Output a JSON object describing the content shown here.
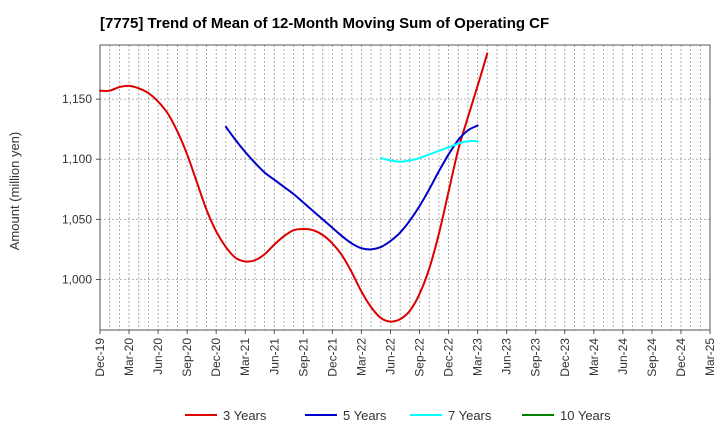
{
  "chart_data": {
    "type": "line",
    "title": "[7775]  Trend of Mean of 12-Month Moving Sum of Operating CF",
    "xlabel": "",
    "ylabel": "Amount (million yen)",
    "ylim": [
      958,
      1195
    ],
    "y_ticks": [
      1000,
      1050,
      1100,
      1150
    ],
    "y_tick_labels": [
      "1,000",
      "1,050",
      "1,100",
      "1,150"
    ],
    "x_tick_labels": [
      "Dec-19",
      "Mar-20",
      "Jun-20",
      "Sep-20",
      "Dec-20",
      "Mar-21",
      "Jun-21",
      "Sep-21",
      "Dec-21",
      "Mar-22",
      "Jun-22",
      "Sep-22",
      "Dec-22",
      "Mar-23",
      "Jun-23",
      "Sep-23",
      "Dec-23",
      "Mar-24",
      "Jun-24",
      "Sep-24",
      "Dec-24",
      "Mar-25"
    ],
    "grid": true,
    "legend_position": "bottom",
    "series": [
      {
        "name": "3 Years",
        "color": "#dd0000",
        "points": [
          [
            0,
            1157
          ],
          [
            1,
            1157
          ],
          [
            2,
            1160
          ],
          [
            3,
            1161
          ],
          [
            4,
            1159
          ],
          [
            5,
            1155
          ],
          [
            6,
            1148
          ],
          [
            7,
            1138
          ],
          [
            8,
            1123
          ],
          [
            9,
            1104
          ],
          [
            10,
            1081
          ],
          [
            11,
            1058
          ],
          [
            12,
            1040
          ],
          [
            13,
            1027
          ],
          [
            14,
            1018
          ],
          [
            15,
            1015
          ],
          [
            16,
            1016
          ],
          [
            17,
            1021
          ],
          [
            18,
            1029
          ],
          [
            19,
            1036
          ],
          [
            20,
            1041
          ],
          [
            21,
            1042
          ],
          [
            22,
            1041
          ],
          [
            23,
            1037
          ],
          [
            24,
            1030
          ],
          [
            25,
            1020
          ],
          [
            26,
            1006
          ],
          [
            27,
            990
          ],
          [
            28,
            977
          ],
          [
            29,
            968
          ],
          [
            30,
            965
          ],
          [
            31,
            967
          ],
          [
            32,
            974
          ],
          [
            33,
            988
          ],
          [
            34,
            1009
          ],
          [
            35,
            1038
          ],
          [
            36,
            1073
          ],
          [
            37,
            1108
          ],
          [
            38,
            1135
          ],
          [
            39,
            1161
          ],
          [
            40,
            1188
          ]
        ]
      },
      {
        "name": "5 Years",
        "color": "#0000cc",
        "points": [
          [
            13,
            1127
          ],
          [
            14,
            1116
          ],
          [
            15,
            1106
          ],
          [
            16,
            1097
          ],
          [
            17,
            1089
          ],
          [
            18,
            1083
          ],
          [
            19,
            1077
          ],
          [
            20,
            1071
          ],
          [
            21,
            1064
          ],
          [
            22,
            1057
          ],
          [
            23,
            1050
          ],
          [
            24,
            1043
          ],
          [
            25,
            1036
          ],
          [
            26,
            1030
          ],
          [
            27,
            1026
          ],
          [
            28,
            1025
          ],
          [
            29,
            1027
          ],
          [
            30,
            1032
          ],
          [
            31,
            1039
          ],
          [
            32,
            1049
          ],
          [
            33,
            1061
          ],
          [
            34,
            1075
          ],
          [
            35,
            1090
          ],
          [
            36,
            1104
          ],
          [
            37,
            1116
          ],
          [
            38,
            1124
          ],
          [
            39,
            1128
          ]
        ]
      },
      {
        "name": "7 Years",
        "color": "#00ffff",
        "points": [
          [
            29,
            1101
          ],
          [
            30,
            1099
          ],
          [
            31,
            1098
          ],
          [
            32,
            1099
          ],
          [
            33,
            1101
          ],
          [
            34,
            1104
          ],
          [
            35,
            1107
          ],
          [
            36,
            1110
          ],
          [
            37,
            1113
          ],
          [
            38,
            1115
          ],
          [
            39,
            1115
          ]
        ]
      },
      {
        "name": "10 Years",
        "color": "#008000",
        "points": []
      }
    ]
  }
}
